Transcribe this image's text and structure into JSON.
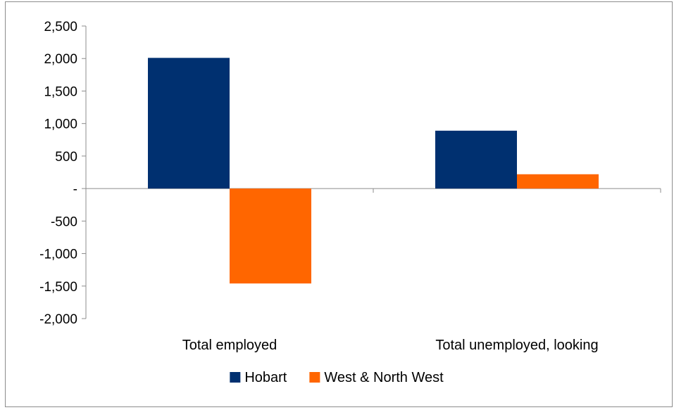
{
  "chart_data": {
    "type": "bar",
    "categories": [
      "Total employed",
      "Total unemployed, looking"
    ],
    "series": [
      {
        "name": "Hobart",
        "values": [
          2010,
          890
        ],
        "color": "#003070"
      },
      {
        "name": "West & North West",
        "values": [
          -1460,
          220
        ],
        "color": "#ff6600"
      }
    ],
    "ylim": [
      -2000,
      2500
    ],
    "yticks": [
      2500,
      2000,
      1500,
      1000,
      500,
      0,
      -500,
      -1000,
      -1500,
      -2000
    ],
    "ytick_labels": [
      "2,500",
      "2,000",
      "1,500",
      "1,000",
      "500",
      "-",
      "-500",
      "-1,000",
      "-1,500",
      "-2,000"
    ],
    "grid": false,
    "legend_position": "bottom"
  }
}
